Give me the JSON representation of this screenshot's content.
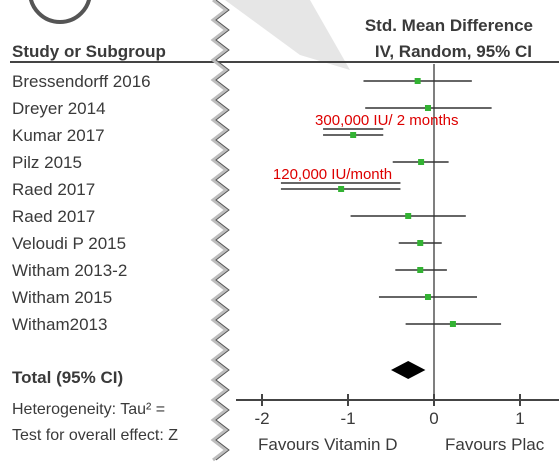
{
  "header": {
    "study_col": "Study or Subgroup",
    "effect_line1": "Std. Mean Difference",
    "effect_line2": "IV, Random, 95% CI"
  },
  "annotations": {
    "dose_monthly2": "300,000 IU/ 2 months",
    "dose_monthly": "120,000 IU/month"
  },
  "footer": {
    "total": "Total (95% CI)",
    "heterogeneity": "Heterogeneity: Tau² =",
    "overall": "Test for overall effect: Z"
  },
  "colors": {
    "point": "#33b233",
    "annotation": "#dd0000",
    "text": "#3a3a3a",
    "watermark": "#e6e6e6"
  },
  "chart_data": {
    "type": "forest",
    "title": "Std. Mean Difference IV, Random, 95% CI",
    "xlabel_left": "Favours Vitamin D",
    "xlabel_right": "Favours Plac",
    "xlim": [
      -2.3,
      1.4
    ],
    "ticks": [
      -2,
      -1,
      0,
      1
    ],
    "tick_labels": [
      "-2",
      "-1",
      "0",
      "1"
    ],
    "studies": [
      {
        "name": "Bressendorff 2016",
        "smd": -0.19,
        "ci": [
          -0.82,
          0.44
        ]
      },
      {
        "name": "Dreyer 2014",
        "smd": -0.07,
        "ci": [
          -0.8,
          0.67
        ]
      },
      {
        "name": "Kumar 2017",
        "smd": -0.94,
        "ci": [
          -1.29,
          -0.59
        ]
      },
      {
        "name": "Pilz 2015",
        "smd": -0.15,
        "ci": [
          -0.48,
          0.17
        ]
      },
      {
        "name": "Raed 2017",
        "smd": -1.08,
        "ci": [
          -1.78,
          -0.39
        ]
      },
      {
        "name": "Raed 2017",
        "smd": -0.3,
        "ci": [
          -0.97,
          0.37
        ]
      },
      {
        "name": "Veloudi P 2015",
        "smd": -0.16,
        "ci": [
          -0.41,
          0.09
        ]
      },
      {
        "name": "Witham 2013-2",
        "smd": -0.16,
        "ci": [
          -0.45,
          0.15
        ]
      },
      {
        "name": "Witham 2015",
        "smd": -0.07,
        "ci": [
          -0.64,
          0.5
        ]
      },
      {
        "name": "Witham2013",
        "smd": 0.22,
        "ci": [
          -0.33,
          0.78
        ]
      }
    ],
    "total": {
      "smd": -0.3,
      "ci": [
        -0.5,
        -0.1
      ]
    },
    "dose_groups": [
      {
        "label": "300,000 IU/ 2 months",
        "study_index": 2
      },
      {
        "label": "120,000 IU/month",
        "study_index": 4
      }
    ]
  }
}
